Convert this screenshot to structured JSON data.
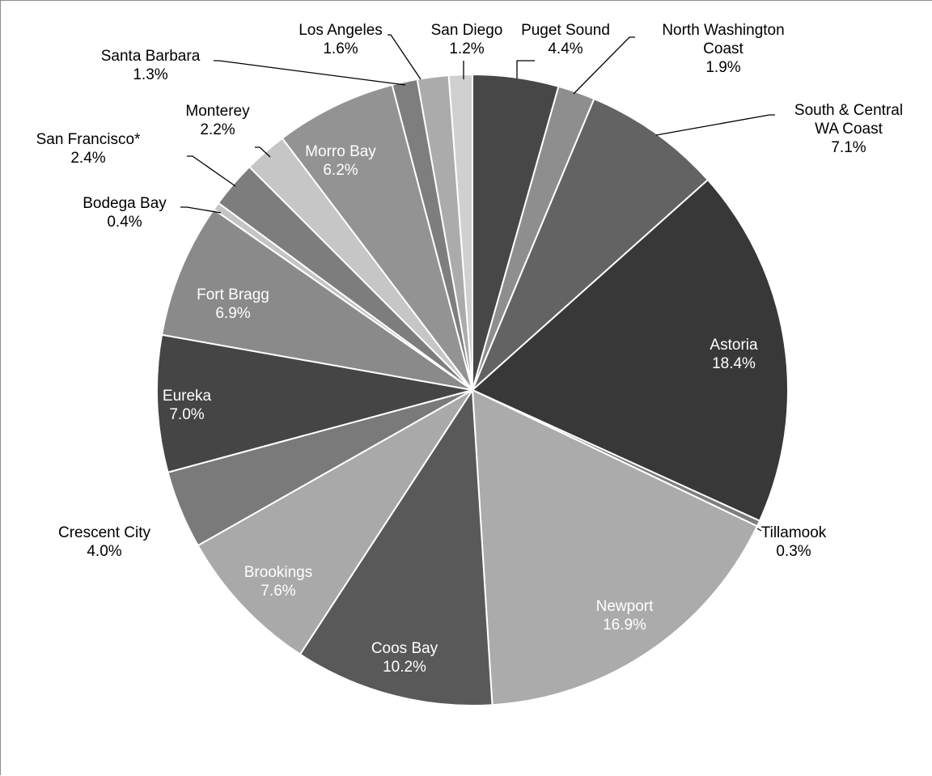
{
  "chart_data": {
    "type": "pie",
    "title": "",
    "start_angle_deg": 0,
    "direction": "clockwise",
    "slices": [
      {
        "name_lines": [
          "Puget Sound"
        ],
        "pct_label": "4.4%",
        "value": 4.4,
        "color": "#474747",
        "label_color": "#000000",
        "label_outside": true
      },
      {
        "name_lines": [
          "North Washington",
          "Coast"
        ],
        "pct_label": "1.9%",
        "value": 1.9,
        "color": "#8e8e8e",
        "label_color": "#000000",
        "label_outside": true
      },
      {
        "name_lines": [
          "South & Central",
          "WA Coast"
        ],
        "pct_label": "7.1%",
        "value": 7.1,
        "color": "#636363",
        "label_color": "#000000",
        "label_outside": true
      },
      {
        "name_lines": [
          "Astoria"
        ],
        "pct_label": "18.4%",
        "value": 18.4,
        "color": "#383838",
        "label_color": "#ffffff",
        "label_outside": false
      },
      {
        "name_lines": [
          "Tillamook"
        ],
        "pct_label": "0.3%",
        "value": 0.3,
        "color": "#7e7e7e",
        "label_color": "#000000",
        "label_outside": true
      },
      {
        "name_lines": [
          "Newport"
        ],
        "pct_label": "16.9%",
        "value": 16.9,
        "color": "#ababab",
        "label_color": "#ffffff",
        "label_outside": false
      },
      {
        "name_lines": [
          "Coos Bay"
        ],
        "pct_label": "10.2%",
        "value": 10.2,
        "color": "#595959",
        "label_color": "#ffffff",
        "label_outside": false
      },
      {
        "name_lines": [
          "Brookings"
        ],
        "pct_label": "7.6%",
        "value": 7.6,
        "color": "#a9a9a9",
        "label_color": "#ffffff",
        "label_outside": false
      },
      {
        "name_lines": [
          "Crescent City"
        ],
        "pct_label": "4.0%",
        "value": 4.0,
        "color": "#7a7a7a",
        "label_color": "#000000",
        "label_outside": true
      },
      {
        "name_lines": [
          "Eureka"
        ],
        "pct_label": "7.0%",
        "value": 7.0,
        "color": "#454545",
        "label_color": "#ffffff",
        "label_outside": false
      },
      {
        "name_lines": [
          "Fort Bragg"
        ],
        "pct_label": "6.9%",
        "value": 6.9,
        "color": "#8a8a8a",
        "label_color": "#ffffff",
        "label_outside": false
      },
      {
        "name_lines": [
          "Bodega Bay"
        ],
        "pct_label": "0.4%",
        "value": 0.4,
        "color": "#c4c4c4",
        "label_color": "#000000",
        "label_outside": true
      },
      {
        "name_lines": [
          "San Francisco*"
        ],
        "pct_label": "2.4%",
        "value": 2.4,
        "color": "#7d7d7d",
        "label_color": "#000000",
        "label_outside": true
      },
      {
        "name_lines": [
          "Monterey"
        ],
        "pct_label": "2.2%",
        "value": 2.2,
        "color": "#c6c6c6",
        "label_color": "#000000",
        "label_outside": true
      },
      {
        "name_lines": [
          "Morro Bay"
        ],
        "pct_label": "6.2%",
        "value": 6.2,
        "color": "#939393",
        "label_color": "#ffffff",
        "label_outside": false
      },
      {
        "name_lines": [
          "Santa Barbara"
        ],
        "pct_label": "1.3%",
        "value": 1.3,
        "color": "#7e7e7e",
        "label_color": "#000000",
        "label_outside": true
      },
      {
        "name_lines": [
          "Los Angeles"
        ],
        "pct_label": "1.6%",
        "value": 1.6,
        "color": "#ababab",
        "label_color": "#000000",
        "label_outside": true
      },
      {
        "name_lines": [
          "San Diego"
        ],
        "pct_label": "1.2%",
        "value": 1.2,
        "color": "#d0d0d0",
        "label_color": "#000000",
        "label_outside": true
      }
    ]
  }
}
